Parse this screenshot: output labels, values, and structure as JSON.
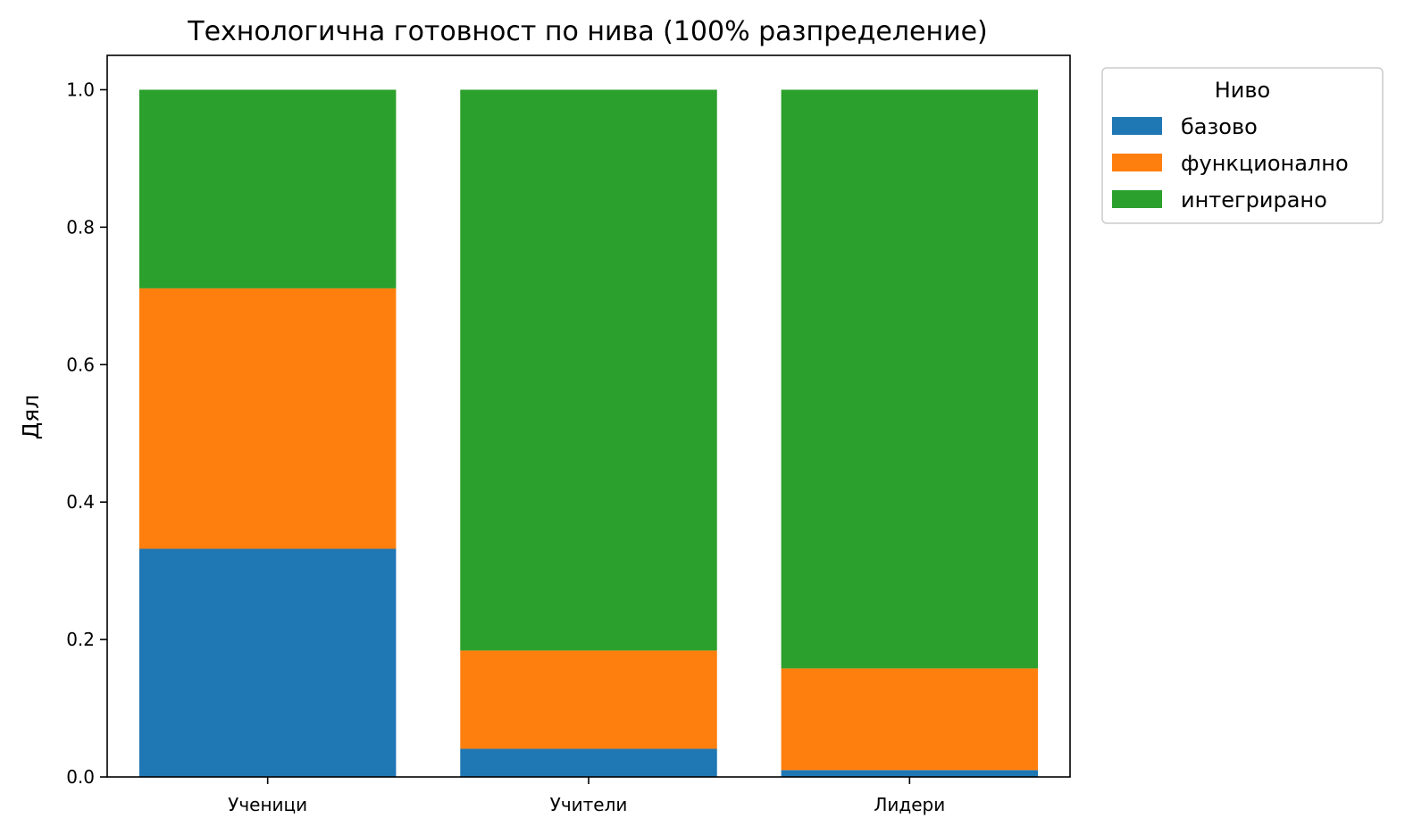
{
  "chart_data": {
    "type": "bar",
    "stacked": true,
    "title": "Технологична готовност по нива (100% разпределение)",
    "xlabel": "",
    "ylabel": "Дял",
    "ylim": [
      0,
      1.05
    ],
    "yticks": [
      0.0,
      0.2,
      0.4,
      0.6,
      0.8,
      1.0
    ],
    "ytick_labels": [
      "0.0",
      "0.2",
      "0.4",
      "0.6",
      "0.8",
      "1.0"
    ],
    "grid": false,
    "legend": {
      "title": "Ниво",
      "placement": "outside-top-right"
    },
    "categories": [
      "Ученици",
      "Учители",
      "Лидери"
    ],
    "series": [
      {
        "name": "базово",
        "color": "#1f77b4",
        "values": [
          0.332,
          0.041,
          0.01
        ]
      },
      {
        "name": "функционално",
        "color": "#ff7f0e",
        "values": [
          0.379,
          0.143,
          0.148
        ]
      },
      {
        "name": "интегрирано",
        "color": "#2ca02c",
        "values": [
          0.289,
          0.816,
          0.842
        ]
      }
    ]
  }
}
